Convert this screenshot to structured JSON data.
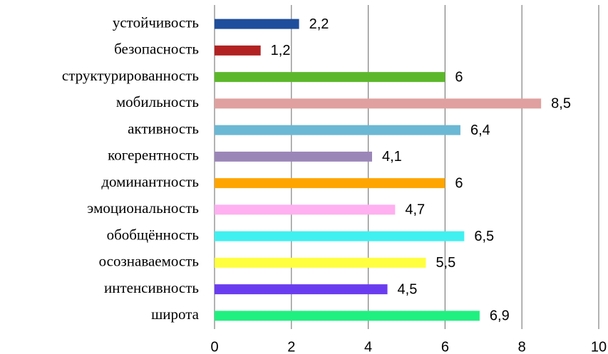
{
  "chart_data": {
    "type": "barh",
    "categories": [
      "устойчивость",
      "безопасность",
      "структурированность",
      "мобильность",
      "активность",
      "когерентность",
      "доминантность",
      "эмоциональность",
      "обобщённость",
      "осознаваемость",
      "интенсивность",
      "широта"
    ],
    "values": [
      2.2,
      1.2,
      6,
      8.5,
      6.4,
      4.1,
      6,
      4.7,
      6.5,
      5.5,
      4.5,
      6.9
    ],
    "value_labels": [
      "2,2",
      "1,2",
      "6",
      "8,5",
      "6,4",
      "4,1",
      "6",
      "4,7",
      "6,5",
      "5,5",
      "4,5",
      "6,9"
    ],
    "colors": [
      "#1f4e9c",
      "#b22222",
      "#5cb82a",
      "#e0a0a0",
      "#6bb8d4",
      "#9b86b8",
      "#ffa500",
      "#ffb0f0",
      "#40f0f0",
      "#ffff40",
      "#6a3cf0",
      "#20f080"
    ],
    "xlim": [
      0,
      10
    ],
    "xticks": [
      0,
      2,
      4,
      6,
      8,
      10
    ],
    "grid": true
  }
}
